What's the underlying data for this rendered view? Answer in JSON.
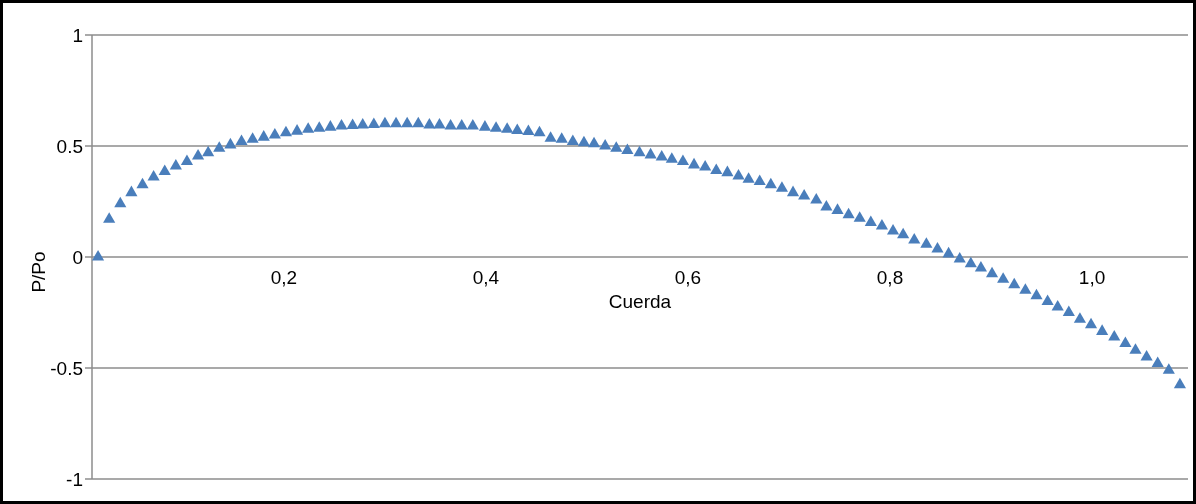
{
  "chart_data": {
    "type": "scatter",
    "xlabel": "Cuerda",
    "ylabel": "P/Po",
    "x": [
      0.016,
      0.027,
      0.038,
      0.049,
      0.06,
      0.071,
      0.082,
      0.093,
      0.104,
      0.115,
      0.125,
      0.136,
      0.147,
      0.158,
      0.169,
      0.18,
      0.191,
      0.202,
      0.213,
      0.224,
      0.235,
      0.246,
      0.257,
      0.268,
      0.278,
      0.289,
      0.3,
      0.311,
      0.322,
      0.333,
      0.344,
      0.354,
      0.365,
      0.376,
      0.387,
      0.399,
      0.41,
      0.421,
      0.431,
      0.442,
      0.453,
      0.464,
      0.475,
      0.486,
      0.497,
      0.507,
      0.518,
      0.529,
      0.54,
      0.552,
      0.563,
      0.574,
      0.584,
      0.595,
      0.606,
      0.617,
      0.628,
      0.639,
      0.65,
      0.66,
      0.671,
      0.682,
      0.693,
      0.704,
      0.715,
      0.727,
      0.737,
      0.748,
      0.759,
      0.77,
      0.781,
      0.792,
      0.803,
      0.813,
      0.824,
      0.836,
      0.847,
      0.858,
      0.869,
      0.88,
      0.89,
      0.901,
      0.912,
      0.923,
      0.934,
      0.945,
      0.956,
      0.966,
      0.977,
      0.988,
      0.999,
      1.01,
      1.022,
      1.033,
      1.043,
      1.054,
      1.065,
      1.076,
      1.087
    ],
    "series": [
      {
        "color": "#4a7ebb",
        "values": [
          0,
          0.17,
          0.24,
          0.29,
          0.325,
          0.36,
          0.385,
          0.41,
          0.43,
          0.455,
          0.47,
          0.49,
          0.505,
          0.52,
          0.53,
          0.54,
          0.55,
          0.56,
          0.567,
          0.575,
          0.58,
          0.585,
          0.59,
          0.592,
          0.595,
          0.597,
          0.6,
          0.6,
          0.6,
          0.6,
          0.595,
          0.595,
          0.59,
          0.59,
          0.59,
          0.585,
          0.58,
          0.575,
          0.57,
          0.565,
          0.56,
          0.535,
          0.53,
          0.52,
          0.515,
          0.51,
          0.5,
          0.49,
          0.48,
          0.47,
          0.46,
          0.45,
          0.44,
          0.43,
          0.415,
          0.405,
          0.39,
          0.38,
          0.365,
          0.35,
          0.34,
          0.325,
          0.31,
          0.29,
          0.275,
          0.257,
          0.225,
          0.21,
          0.19,
          0.175,
          0.155,
          0.14,
          0.117,
          0.1,
          0.077,
          0.057,
          0.036,
          0.014,
          -0.009,
          -0.03,
          -0.05,
          -0.075,
          -0.1,
          -0.125,
          -0.15,
          -0.175,
          -0.2,
          -0.225,
          -0.25,
          -0.28,
          -0.305,
          -0.335,
          -0.36,
          -0.39,
          -0.42,
          -0.45,
          -0.48,
          -0.51,
          -0.575
        ]
      }
    ],
    "xlim": [
      0.01,
      1.095
    ],
    "xticks": [
      {
        "value": 0.2,
        "label": "0,2"
      },
      {
        "value": 0.4,
        "label": "0,4"
      },
      {
        "value": 0.6,
        "label": "0,6"
      },
      {
        "value": 0.8,
        "label": "0,8"
      },
      {
        "value": 1.0,
        "label": "1,0"
      }
    ],
    "ylim": [
      -1,
      1
    ],
    "yticks": [
      -1,
      -0.5,
      0,
      0.5,
      1
    ],
    "grid": "y",
    "marker": "triangle"
  }
}
